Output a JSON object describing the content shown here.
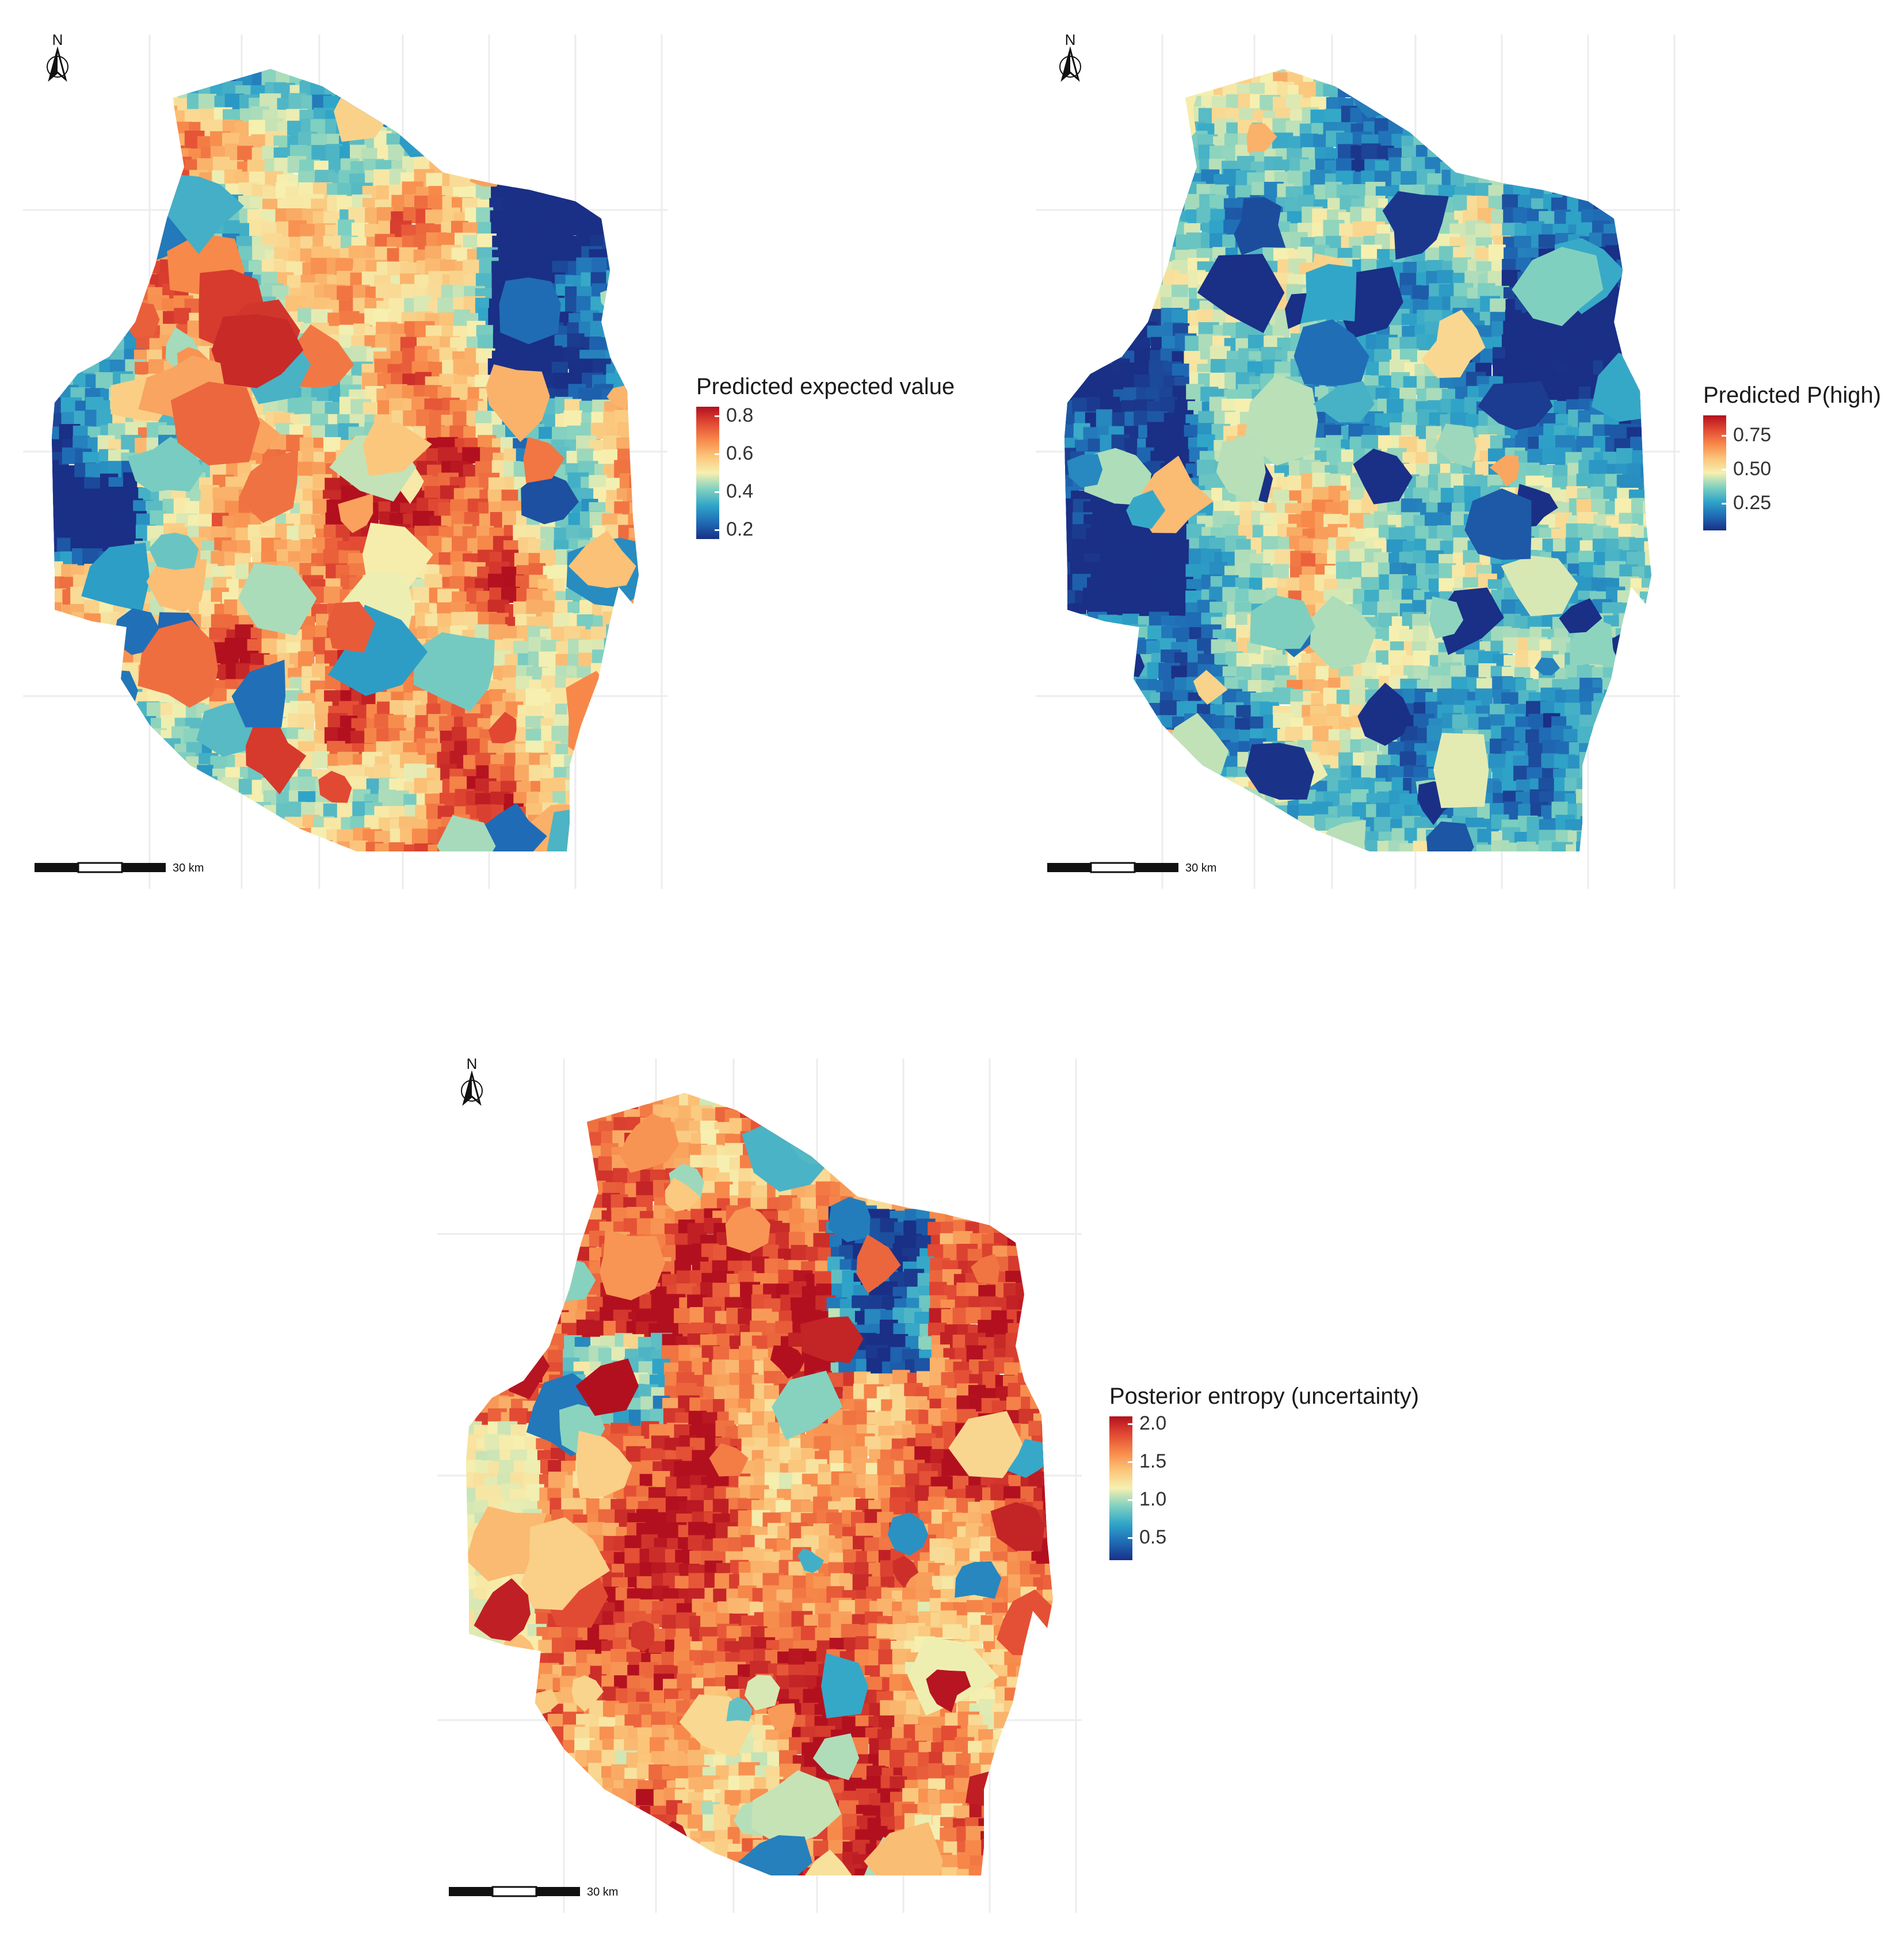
{
  "figure": {
    "panels": [
      {
        "id": "expected-value",
        "palette": "blue-to-red",
        "north_label": "N",
        "scale_label": "30 km",
        "legend": {
          "title": "Predicted expected value",
          "ticks": [
            "0.8",
            "0.6",
            "0.4",
            "0.2"
          ],
          "range": [
            0.15,
            0.85
          ]
        }
      },
      {
        "id": "p-high",
        "palette": "blue-dominant",
        "north_label": "N",
        "scale_label": "30 km",
        "legend": {
          "title": "Predicted P(high)",
          "ticks": [
            "0.75",
            "0.50",
            "0.25"
          ],
          "range": [
            0.05,
            0.9
          ]
        }
      },
      {
        "id": "entropy",
        "palette": "red-dominant",
        "north_label": "N",
        "scale_label": "30 km",
        "legend": {
          "title": "Posterior entropy (uncertainty)",
          "ticks": [
            "2.0",
            "1.5",
            "1.0",
            "0.5"
          ],
          "range": [
            0.2,
            2.1
          ]
        }
      }
    ],
    "colors": {
      "ramp": [
        "#1a2f86",
        "#1f6bb5",
        "#2fa4c8",
        "#7fd0c0",
        "#f6f0b0",
        "#fbc57a",
        "#f7894a",
        "#e24a33",
        "#b3101f"
      ],
      "background": "#ffffff",
      "grid": "#ececec"
    }
  }
}
